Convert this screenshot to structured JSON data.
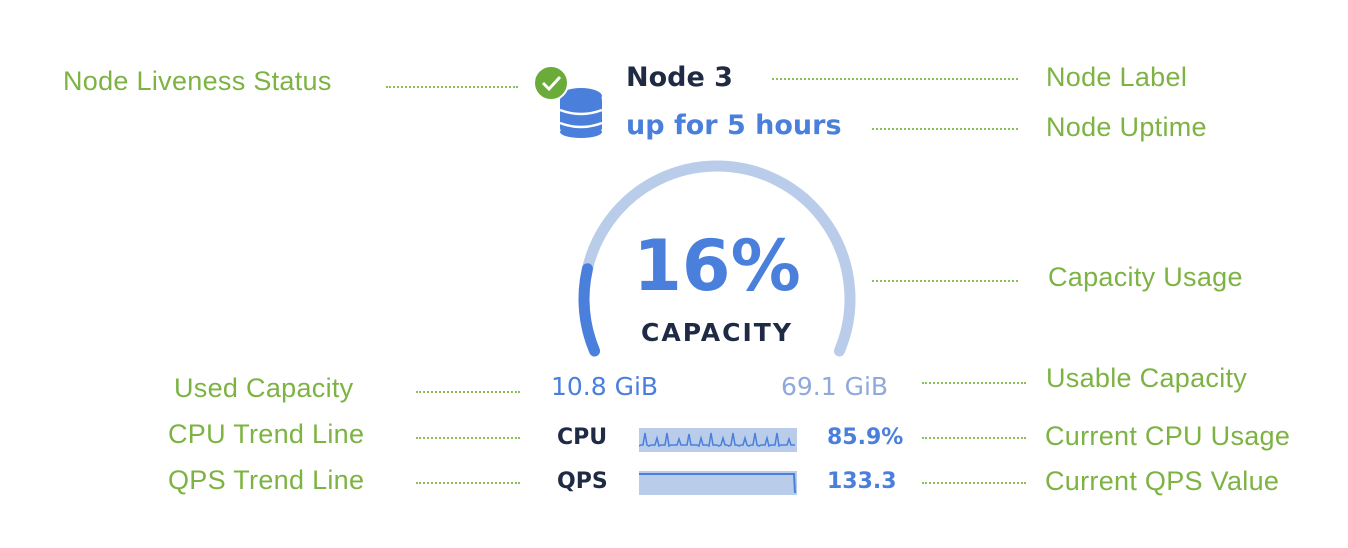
{
  "annotations": {
    "liveness": "Node Liveness Status",
    "label": "Node Label",
    "uptime": "Node Uptime",
    "capacity_usage": "Capacity Usage",
    "used_capacity": "Used Capacity",
    "usable_capacity": "Usable Capacity",
    "cpu_trend": "CPU Trend Line",
    "cpu_current": "Current CPU Usage",
    "qps_trend": "QPS Trend Line",
    "qps_current": "Current QPS Value"
  },
  "node": {
    "label": "Node 3",
    "uptime": "up for 5 hours",
    "status": "live",
    "status_icon": "check-circle-icon",
    "node_icon": "database-icon",
    "capacity_percent_label": "16%",
    "capacity_fraction": 0.16,
    "capacity_label": "CAPACITY",
    "used": "10.8 GiB",
    "usable": "69.1 GiB",
    "cpu_label": "CPU",
    "cpu_value": "85.9%",
    "qps_label": "QPS",
    "qps_value": "133.3"
  },
  "colors": {
    "annotation": "#7cb342",
    "accent": "#4a7fdc",
    "track": "#b9cce9",
    "status_ok": "#6aab3a",
    "text": "#1f2a44"
  }
}
